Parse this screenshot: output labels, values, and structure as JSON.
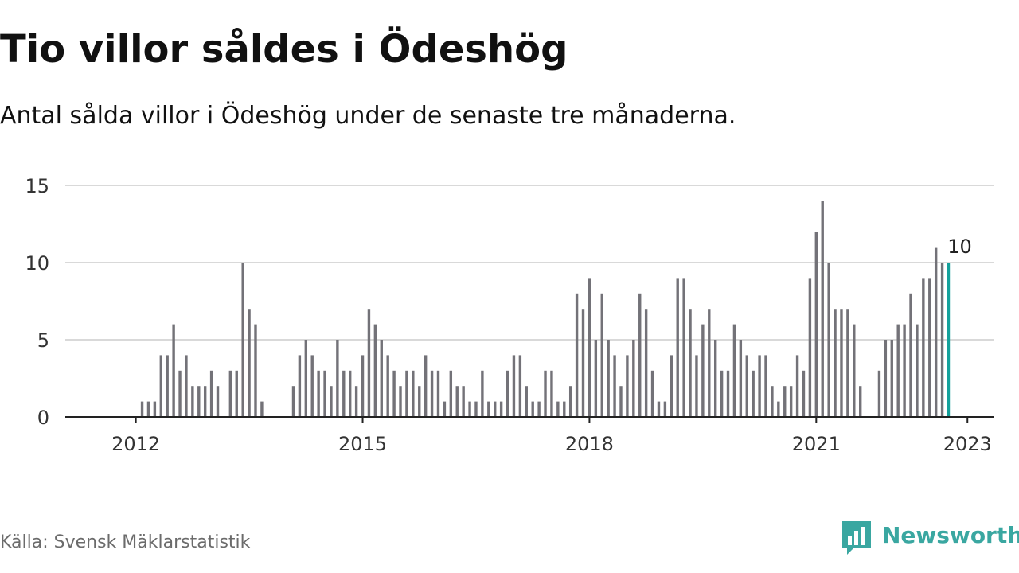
{
  "header": {
    "title": "Tio villor såldes i Ödeshög",
    "subtitle": "Antal sålda villor i Ödeshög under de senaste tre månaderna."
  },
  "footer": {
    "source": "Källa: Svensk Mäklarstatistik",
    "brand": "Newsworthy"
  },
  "colors": {
    "bar": "#737278",
    "highlight": "#14a09b",
    "grid": "#d9d9d9",
    "axis": "#222222",
    "brand": "#3aa7a1"
  },
  "chart_data": {
    "type": "bar",
    "title": "Tio villor såldes i Ödeshög",
    "subtitle": "Antal sålda villor i Ödeshög under de senaste tre månaderna.",
    "x_start": "2011-03",
    "x_end": "2023-03",
    "x_ticks": [
      "2012",
      "2015",
      "2018",
      "2021",
      "2023"
    ],
    "y_ticks": [
      0,
      5,
      10,
      15
    ],
    "ylim": [
      0,
      15
    ],
    "grid": true,
    "highlight_label": "10",
    "series": [
      {
        "values": [
          null,
          null,
          null,
          null,
          null,
          null,
          null,
          null,
          null,
          null,
          null,
          1,
          1,
          1,
          4,
          4,
          6,
          3,
          4,
          2,
          2,
          2,
          3,
          2,
          null,
          3,
          3,
          10,
          7,
          6,
          1,
          null,
          null,
          null,
          null,
          2,
          4,
          5,
          4,
          3,
          3,
          2,
          5,
          3,
          3,
          2,
          4,
          7,
          6,
          5,
          4,
          3,
          2,
          3,
          3,
          2,
          4,
          3,
          3,
          1,
          3,
          2,
          2,
          1,
          1,
          3,
          1,
          1,
          1,
          3,
          4,
          4,
          2,
          1,
          1,
          3,
          3,
          1,
          1,
          2,
          8,
          7,
          9,
          5,
          8,
          5,
          4,
          2,
          4,
          5,
          8,
          7,
          3,
          1,
          1,
          4,
          9,
          9,
          7,
          4,
          6,
          7,
          5,
          3,
          3,
          6,
          5,
          4,
          3,
          4,
          4,
          2,
          1,
          2,
          2,
          4,
          3,
          9,
          12,
          14,
          10,
          7,
          7,
          7,
          6,
          2,
          null,
          null,
          3,
          5,
          5,
          6,
          6,
          8,
          6,
          9,
          9,
          11,
          10,
          10
        ]
      }
    ]
  }
}
